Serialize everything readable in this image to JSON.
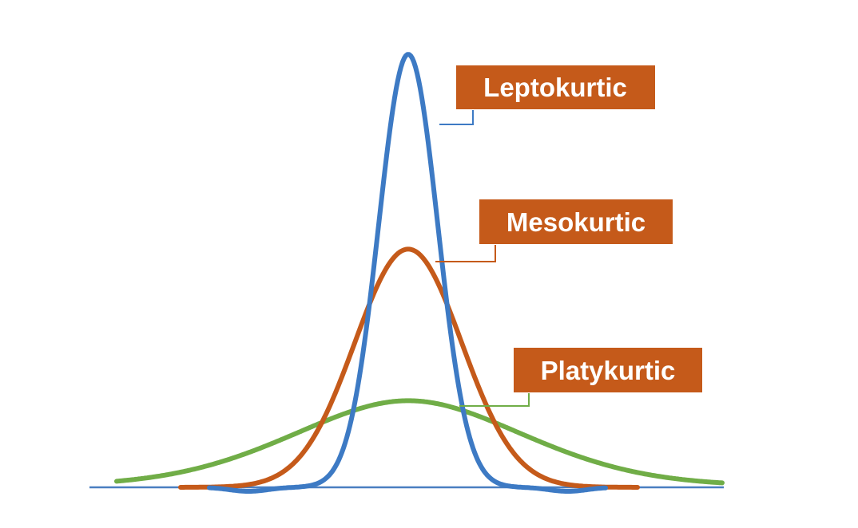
{
  "colors": {
    "background": "#ffffff",
    "baseline": "#4a7fc1",
    "leptokurtic": "#3d7ac4",
    "mesokurtic": "#c55a1a",
    "platykurtic": "#70ad47",
    "label_fill": "#c55a1a",
    "label_text": "#ffffff"
  },
  "labels": {
    "leptokurtic": "Leptokurtic",
    "mesokurtic": "Mesokurtic",
    "platykurtic": "Platykurtic"
  },
  "curves": [
    {
      "key": "platykurtic",
      "relative_peak_height": 0.2,
      "spread": "wide"
    },
    {
      "key": "mesokurtic",
      "relative_peak_height": 0.55,
      "spread": "medium"
    },
    {
      "key": "leptokurtic",
      "relative_peak_height": 1.0,
      "spread": "narrow"
    }
  ]
}
